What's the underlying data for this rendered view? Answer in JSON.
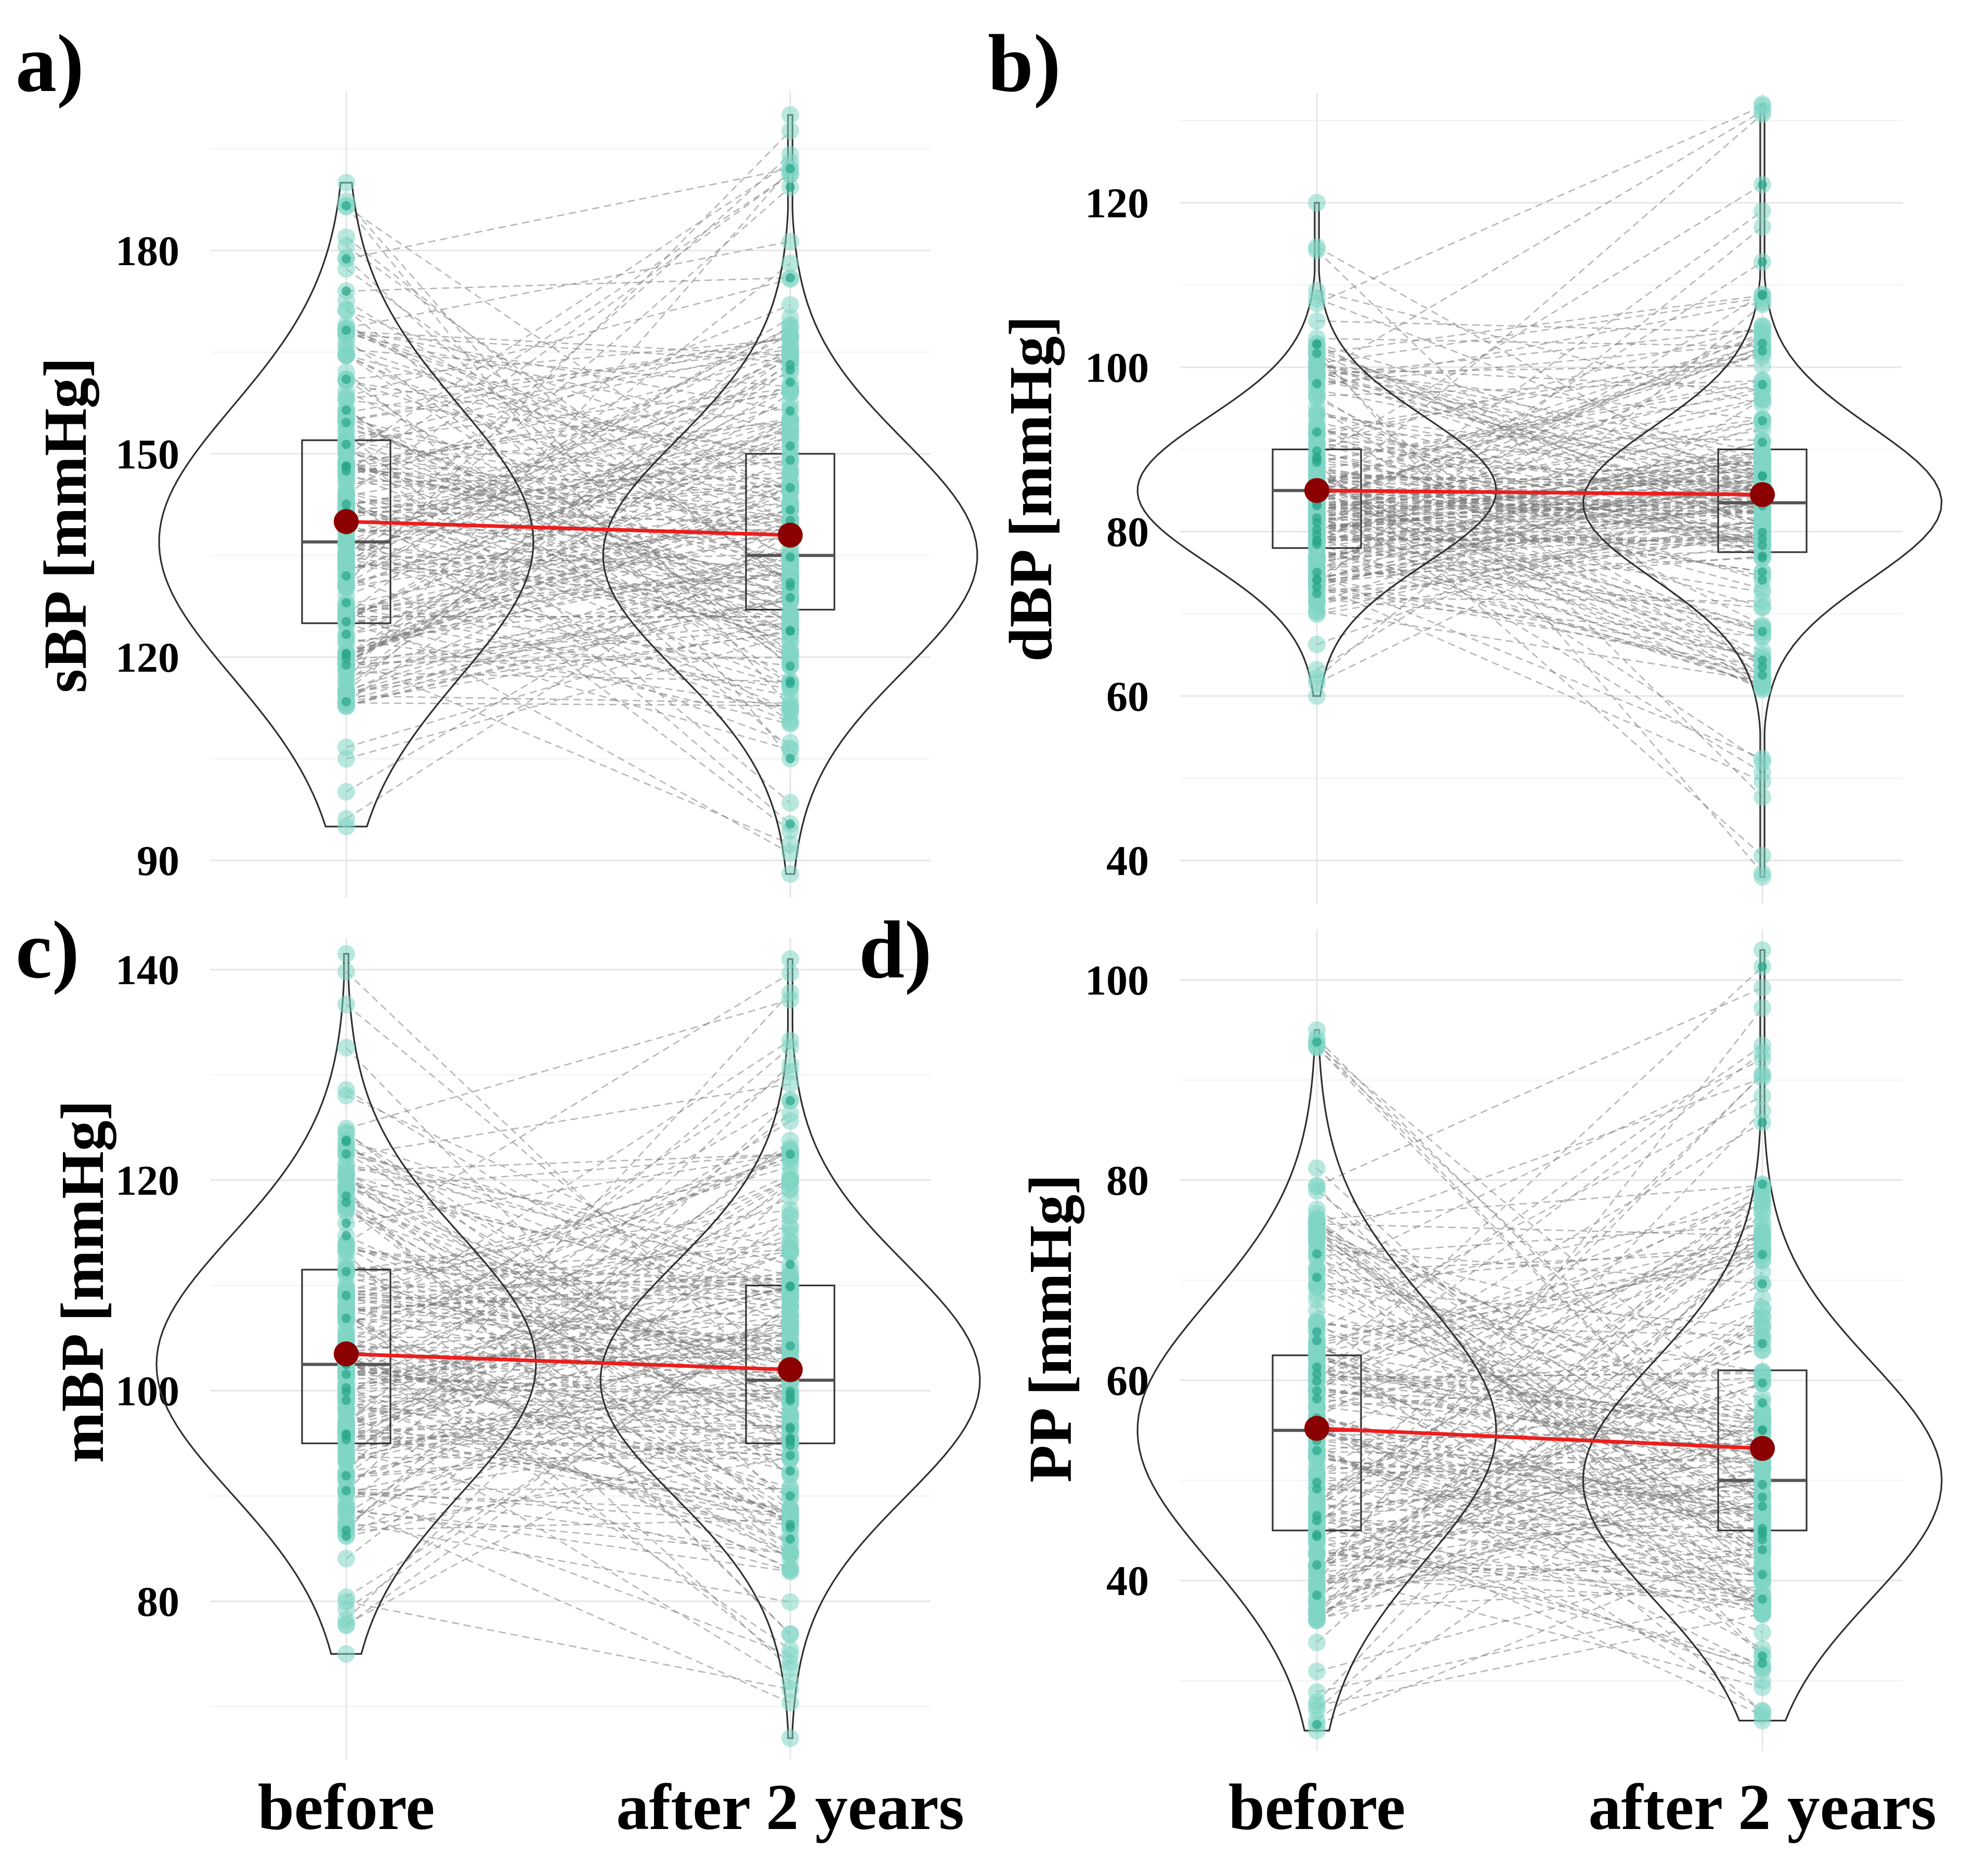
{
  "figure": {
    "x_categories": [
      "before",
      "after 2 years"
    ],
    "colors": {
      "points": "#7fd6c4",
      "points_dark": "#2aa58a",
      "mean_line": "#ee1c1c",
      "mean_point": "#8b0000",
      "violin": "#2f2f2f",
      "pair_lines": "#7a7a7a"
    }
  },
  "chart_data": [
    {
      "type": "violin-box-paired",
      "panel_label": "a)",
      "ylabel": "sBP [mmHg]",
      "ylim": [
        86,
        202
      ],
      "yticks": [
        90,
        120,
        150,
        180
      ],
      "groups": [
        {
          "name": "before",
          "min": 95,
          "q1": 125,
          "median": 137,
          "q3": 152,
          "max": 190,
          "mean": 140
        },
        {
          "name": "after 2 years",
          "min": 88,
          "q1": 127,
          "median": 135,
          "q3": 150,
          "max": 200,
          "mean": 138
        }
      ]
    },
    {
      "type": "violin-box-paired",
      "panel_label": "b)",
      "ylabel": "dBP [mmHg]",
      "ylim": [
        36,
        132
      ],
      "yticks": [
        40,
        60,
        80,
        100,
        120
      ],
      "groups": [
        {
          "name": "before",
          "min": 60,
          "q1": 78,
          "median": 85,
          "q3": 90,
          "max": 120,
          "mean": 85
        },
        {
          "name": "after 2 years",
          "min": 38,
          "q1": 77.5,
          "median": 83.5,
          "q3": 90,
          "max": 132,
          "mean": 84.5
        }
      ]
    },
    {
      "type": "violin-box-paired",
      "panel_label": "c)",
      "ylabel": "mBP [mmHg]",
      "ylim": [
        66,
        142
      ],
      "yticks": [
        80,
        100,
        120,
        140
      ],
      "groups": [
        {
          "name": "before",
          "min": 75,
          "q1": 95,
          "median": 102.5,
          "q3": 111.5,
          "max": 141.5,
          "mean": 103.5
        },
        {
          "name": "after 2 years",
          "min": 67,
          "q1": 95,
          "median": 101,
          "q3": 110,
          "max": 141,
          "mean": 102
        }
      ]
    },
    {
      "type": "violin-box-paired",
      "panel_label": "d)",
      "ylabel": "PP [mmHg]",
      "ylim": [
        24,
        104
      ],
      "yticks": [
        40,
        60,
        80,
        100
      ],
      "groups": [
        {
          "name": "before",
          "min": 25,
          "q1": 45,
          "median": 55,
          "q3": 62.5,
          "max": 95,
          "mean": 55.2
        },
        {
          "name": "after 2 years",
          "min": 26,
          "q1": 45,
          "median": 50,
          "q3": 61,
          "max": 103,
          "mean": 53.2
        }
      ]
    }
  ]
}
